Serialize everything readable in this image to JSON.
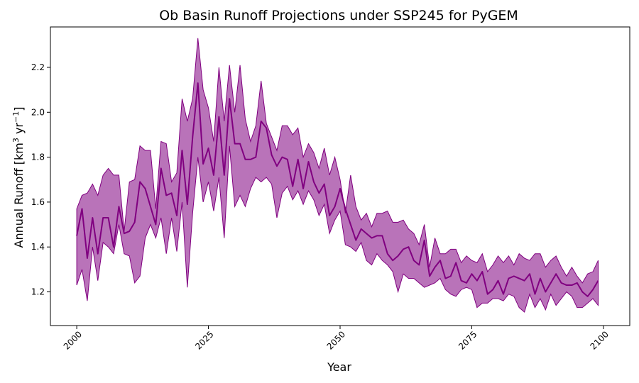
{
  "chart_data": {
    "type": "line",
    "title": "Ob Basin Runoff Projections under SSP245 for PyGEM",
    "xlabel": "Year",
    "ylabel": "Annual Runoff [km",
    "ylabel_sup1": "3",
    "ylabel_mid": " yr",
    "ylabel_sup2": "−1",
    "ylabel_end": "]",
    "xlim": [
      1995,
      2105
    ],
    "ylim": [
      1.05,
      2.38
    ],
    "xticks": [
      2000,
      2025,
      2050,
      2075,
      2100
    ],
    "yticks": [
      1.2,
      1.4,
      1.6,
      1.8,
      2.0,
      2.2
    ],
    "ytick_labels": [
      "1.2",
      "1.4",
      "1.6",
      "1.8",
      "2.0",
      "2.2"
    ],
    "xtick_labels": [
      "2000",
      "2025",
      "2050",
      "2075",
      "2100"
    ],
    "grid": false,
    "colors": {
      "line": "#800080",
      "band": "#800080",
      "band_opacity": 0.55
    },
    "x": [
      2000,
      2001,
      2002,
      2003,
      2004,
      2005,
      2006,
      2007,
      2008,
      2009,
      2010,
      2011,
      2012,
      2013,
      2014,
      2015,
      2016,
      2017,
      2018,
      2019,
      2020,
      2021,
      2022,
      2023,
      2024,
      2025,
      2026,
      2027,
      2028,
      2029,
      2030,
      2031,
      2032,
      2033,
      2034,
      2035,
      2036,
      2037,
      2038,
      2039,
      2040,
      2041,
      2042,
      2043,
      2044,
      2045,
      2046,
      2047,
      2048,
      2049,
      2050,
      2051,
      2052,
      2053,
      2054,
      2055,
      2056,
      2057,
      2058,
      2059,
      2060,
      2061,
      2062,
      2063,
      2064,
      2065,
      2066,
      2067,
      2068,
      2069,
      2070,
      2071,
      2072,
      2073,
      2074,
      2075,
      2076,
      2077,
      2078,
      2079,
      2080,
      2081,
      2082,
      2083,
      2084,
      2085,
      2086,
      2087,
      2088,
      2089,
      2090,
      2091,
      2092,
      2093,
      2094,
      2095,
      2096,
      2097,
      2098,
      2099
    ],
    "series": [
      {
        "values": [
          1.45,
          1.57,
          1.35,
          1.53,
          1.37,
          1.53,
          1.53,
          1.4,
          1.58,
          1.46,
          1.47,
          1.51,
          1.69,
          1.66,
          1.58,
          1.5,
          1.75,
          1.63,
          1.64,
          1.54,
          1.83,
          1.59,
          1.89,
          2.13,
          1.77,
          1.84,
          1.72,
          1.98,
          1.72,
          2.06,
          1.86,
          1.86,
          1.79,
          1.79,
          1.8,
          1.96,
          1.93,
          1.81,
          1.76,
          1.8,
          1.79,
          1.67,
          1.79,
          1.66,
          1.78,
          1.69,
          1.64,
          1.68,
          1.54,
          1.58,
          1.66,
          1.57,
          1.5,
          1.43,
          1.48,
          1.46,
          1.44,
          1.45,
          1.45,
          1.37,
          1.34,
          1.36,
          1.39,
          1.4,
          1.34,
          1.32,
          1.43,
          1.27,
          1.31,
          1.34,
          1.26,
          1.27,
          1.33,
          1.25,
          1.24,
          1.28,
          1.25,
          1.29,
          1.19,
          1.21,
          1.25,
          1.19,
          1.26,
          1.27,
          1.26,
          1.25,
          1.28,
          1.19,
          1.26,
          1.2,
          1.24,
          1.28,
          1.24,
          1.23,
          1.23,
          1.24,
          1.2,
          1.18,
          1.21,
          1.25
        ]
      }
    ],
    "band": {
      "upper": [
        1.57,
        1.63,
        1.64,
        1.68,
        1.63,
        1.72,
        1.75,
        1.72,
        1.72,
        1.47,
        1.69,
        1.7,
        1.85,
        1.83,
        1.83,
        1.57,
        1.87,
        1.86,
        1.69,
        1.73,
        2.06,
        1.96,
        2.06,
        2.33,
        2.1,
        2.02,
        1.87,
        2.2,
        1.96,
        2.21,
        2.0,
        2.21,
        1.97,
        1.87,
        1.94,
        2.14,
        1.95,
        1.89,
        1.83,
        1.94,
        1.94,
        1.9,
        1.93,
        1.8,
        1.86,
        1.82,
        1.75,
        1.84,
        1.72,
        1.8,
        1.7,
        1.55,
        1.72,
        1.58,
        1.52,
        1.55,
        1.49,
        1.55,
        1.55,
        1.56,
        1.51,
        1.51,
        1.52,
        1.48,
        1.46,
        1.41,
        1.5,
        1.31,
        1.44,
        1.37,
        1.37,
        1.39,
        1.39,
        1.33,
        1.36,
        1.34,
        1.33,
        1.37,
        1.29,
        1.32,
        1.36,
        1.33,
        1.36,
        1.32,
        1.37,
        1.35,
        1.34,
        1.37,
        1.37,
        1.31,
        1.34,
        1.36,
        1.31,
        1.27,
        1.31,
        1.27,
        1.24,
        1.28,
        1.29,
        1.34
      ],
      "lower": [
        1.23,
        1.3,
        1.16,
        1.4,
        1.25,
        1.42,
        1.4,
        1.37,
        1.5,
        1.37,
        1.36,
        1.24,
        1.27,
        1.44,
        1.5,
        1.44,
        1.53,
        1.37,
        1.53,
        1.38,
        1.6,
        1.22,
        1.55,
        1.8,
        1.6,
        1.69,
        1.56,
        1.71,
        1.44,
        1.85,
        1.58,
        1.63,
        1.58,
        1.66,
        1.71,
        1.69,
        1.71,
        1.68,
        1.53,
        1.64,
        1.67,
        1.61,
        1.65,
        1.59,
        1.65,
        1.61,
        1.54,
        1.59,
        1.46,
        1.52,
        1.56,
        1.41,
        1.4,
        1.38,
        1.42,
        1.34,
        1.32,
        1.37,
        1.34,
        1.32,
        1.29,
        1.2,
        1.28,
        1.26,
        1.26,
        1.24,
        1.22,
        1.23,
        1.24,
        1.26,
        1.21,
        1.19,
        1.18,
        1.21,
        1.22,
        1.21,
        1.13,
        1.15,
        1.15,
        1.17,
        1.17,
        1.16,
        1.19,
        1.18,
        1.13,
        1.11,
        1.19,
        1.13,
        1.17,
        1.12,
        1.19,
        1.14,
        1.17,
        1.2,
        1.18,
        1.13,
        1.13,
        1.15,
        1.17,
        1.14
      ]
    }
  }
}
